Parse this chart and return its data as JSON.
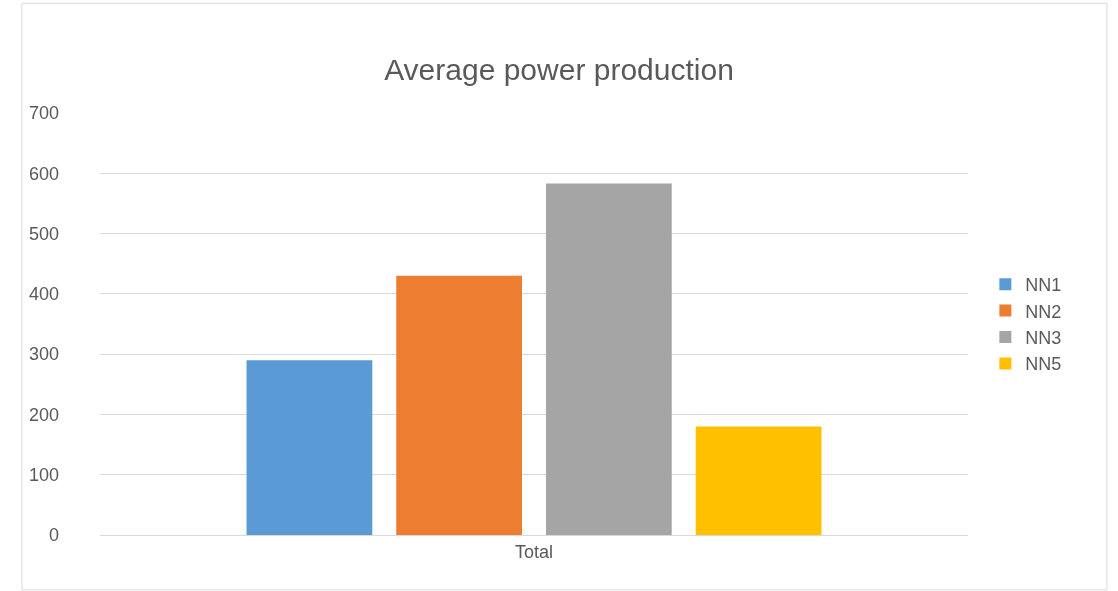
{
  "chart_data": {
    "type": "bar",
    "title": "Average power production",
    "categories": [
      "Total"
    ],
    "series": [
      {
        "name": "NN1",
        "color": "#5b9bd5",
        "values": [
          290
        ]
      },
      {
        "name": "NN2",
        "color": "#ed7d31",
        "values": [
          430
        ]
      },
      {
        "name": "NN3",
        "color": "#a5a5a5",
        "values": [
          583
        ]
      },
      {
        "name": "NN5",
        "color": "#ffc000",
        "values": [
          180
        ]
      }
    ],
    "ylim": [
      0,
      700
    ],
    "yticks": [
      0,
      100,
      200,
      300,
      400,
      500,
      600,
      700
    ],
    "grid": "y",
    "legend": "right"
  }
}
